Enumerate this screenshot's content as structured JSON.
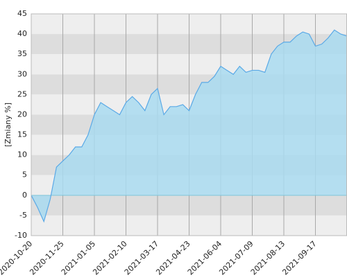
{
  "chart_data": {
    "type": "area",
    "y_label": "[Zmiany %]",
    "categories": [
      "2020-10-20",
      null,
      null,
      null,
      null,
      "2020-11-25",
      null,
      null,
      null,
      null,
      "2021-01-05",
      null,
      null,
      null,
      null,
      "2021-02-10",
      null,
      null,
      null,
      null,
      "2021-03-17",
      null,
      null,
      null,
      null,
      "2021-04-23",
      null,
      null,
      null,
      null,
      "2021-06-04",
      null,
      null,
      null,
      null,
      "2021-07-09",
      null,
      null,
      null,
      null,
      "2021-08-13",
      null,
      null,
      null,
      null,
      "2021-09-17",
      null,
      null,
      null,
      null,
      null
    ],
    "values": [
      0,
      -3,
      -6.5,
      -1,
      7,
      8.5,
      10,
      12,
      12,
      15,
      20,
      23,
      22,
      21,
      20,
      23,
      24.5,
      23,
      21,
      25,
      26.5,
      20,
      22,
      22,
      22.5,
      21,
      25,
      28,
      28,
      29.5,
      32,
      31,
      30,
      32,
      30.5,
      31,
      31,
      30.5,
      35,
      37,
      38,
      38,
      39.5,
      40.5,
      40,
      37,
      37.5,
      39,
      41,
      40,
      39.5
    ],
    "color": "#5aa9e6",
    "fill": "#a9daf0",
    "ylim": [
      -10,
      45
    ],
    "yticks": [
      -10,
      -5,
      0,
      5,
      10,
      15,
      20,
      25,
      30,
      35,
      40,
      45
    ],
    "grid": true
  }
}
